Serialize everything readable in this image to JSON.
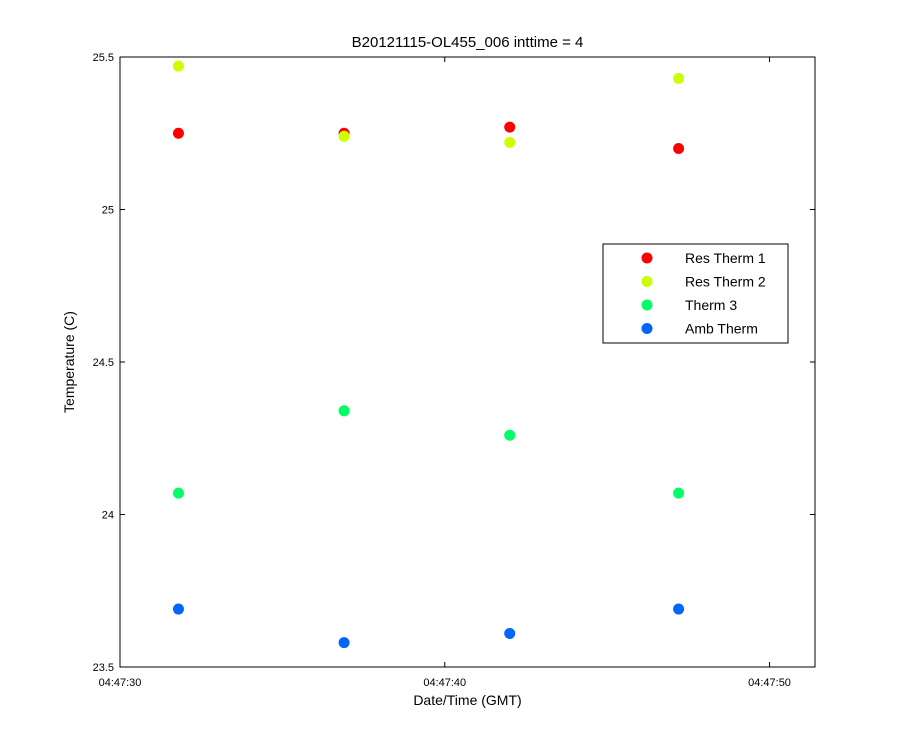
{
  "chart_data": {
    "type": "scatter",
    "title": "B20121115-OL455_006 inttime = 4",
    "xlabel": "Date/Time (GMT)",
    "ylabel": "Temperature (C)",
    "xlim": [
      "04:47:30",
      "04:47:51.4"
    ],
    "ylim": [
      23.5,
      25.5
    ],
    "x_ticks": [
      "04:47:30",
      "04:47:40",
      "04:47:50"
    ],
    "y_ticks": [
      "23.5",
      "24",
      "24.5",
      "25",
      "25.5"
    ],
    "y_tick_values": [
      23.5,
      24,
      24.5,
      25,
      25.5
    ],
    "grid": false,
    "legend_position": "right",
    "x": [
      "04:47:31.8",
      "04:47:36.9",
      "04:47:42.0",
      "04:47:47.2"
    ],
    "series": [
      {
        "name": "Res Therm 1",
        "color": "#ff0000",
        "values": [
          25.25,
          25.25,
          25.27,
          25.2
        ]
      },
      {
        "name": "Res Therm 2",
        "color": "#ccff00",
        "values": [
          25.47,
          25.24,
          25.22,
          25.43
        ]
      },
      {
        "name": "Therm 3",
        "color": "#00ff66",
        "values": [
          24.07,
          24.34,
          24.26,
          24.07
        ]
      },
      {
        "name": "Amb Therm",
        "color": "#0066ff",
        "values": [
          23.69,
          23.58,
          23.61,
          23.69
        ]
      }
    ]
  }
}
